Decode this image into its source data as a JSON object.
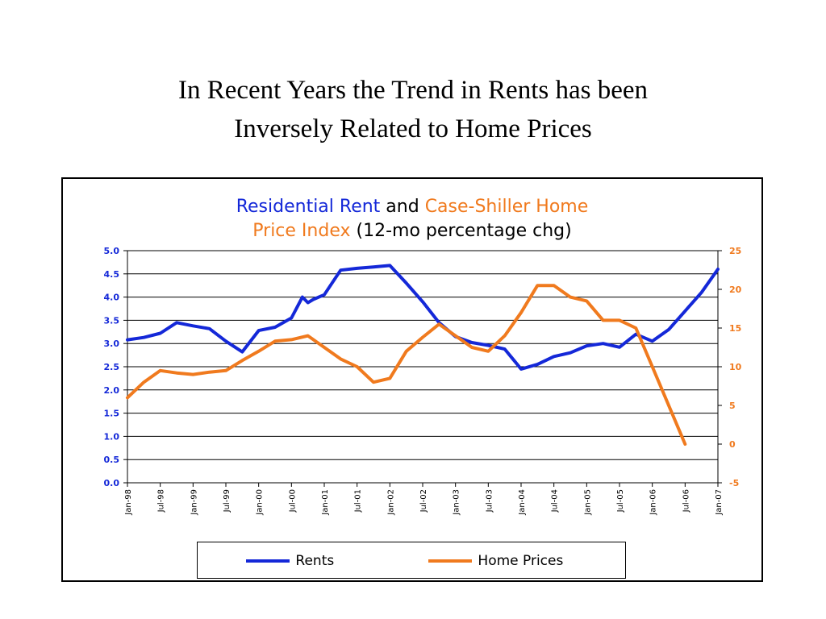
{
  "slide": {
    "title_line1": "In Recent Years the Trend in Rents has been",
    "title_line2": "Inversely Related to Home Prices"
  },
  "chart_header": {
    "part1": "Residential Rent",
    "part2": " and ",
    "part3": "Case-Shiller Home",
    "part4": "Price Index",
    "part5": " (12-mo percentage chg)"
  },
  "colors": {
    "rents": "#1428d8",
    "home_prices": "#f07a1e",
    "left_axis": "#1428d8",
    "right_axis": "#f07a1e"
  },
  "chart_data": {
    "type": "line",
    "title": "Residential Rent and Case-Shiller Home Price Index (12-mo percentage chg)",
    "grid": true,
    "legend_position": "bottom",
    "x_tick_labels": [
      "Jan-98",
      "Jul-98",
      "Jan-99",
      "Jul-99",
      "Jan-00",
      "Jul-00",
      "Jan-01",
      "Jul-01",
      "Jan-02",
      "Jul-02",
      "Jan-03",
      "Jul-03",
      "Jan-04",
      "Jul-04",
      "Jan-05",
      "Jul-05",
      "Jan-06",
      "Jul-06",
      "Jan-07"
    ],
    "y_left": {
      "range": [
        0,
        5
      ],
      "ticks": [
        "0.0",
        "0.5",
        "1.0",
        "1.5",
        "2.0",
        "2.5",
        "3.0",
        "3.5",
        "4.0",
        "4.5",
        "5.0"
      ]
    },
    "y_right": {
      "range": [
        -5,
        25
      ],
      "ticks": [
        "-5",
        "0",
        "5",
        "10",
        "15",
        "20",
        "25"
      ]
    },
    "series": [
      {
        "name": "Rents",
        "axis": "left",
        "x": [
          "Jan-98",
          "Apr-98",
          "Jul-98",
          "Oct-98",
          "Jan-99",
          "Apr-99",
          "Jul-99",
          "Oct-99",
          "Jan-00",
          "Apr-00",
          "Jul-00",
          "Sep-00",
          "Oct-00",
          "Nov-00",
          "Jan-01",
          "Apr-01",
          "Jul-01",
          "Oct-01",
          "Jan-02",
          "Apr-02",
          "Jul-02",
          "Oct-02",
          "Jan-03",
          "Apr-03",
          "Jul-03",
          "Oct-03",
          "Jan-04",
          "Apr-04",
          "Jul-04",
          "Oct-04",
          "Jan-05",
          "Apr-05",
          "Jul-05",
          "Oct-05",
          "Jan-06",
          "Apr-06",
          "Jul-06",
          "Oct-06",
          "Jan-07"
        ],
        "values": [
          3.08,
          3.13,
          3.22,
          3.45,
          3.38,
          3.32,
          3.05,
          2.82,
          3.28,
          3.35,
          3.55,
          4.0,
          3.88,
          3.95,
          4.05,
          4.58,
          4.62,
          4.65,
          4.68,
          4.3,
          3.9,
          3.45,
          3.15,
          3.02,
          2.96,
          2.88,
          2.45,
          2.55,
          2.72,
          2.8,
          2.95,
          3.0,
          2.92,
          3.2,
          3.05,
          3.3,
          3.7,
          4.1,
          4.6
        ]
      },
      {
        "name": "Home Prices",
        "axis": "right",
        "x": [
          "Jan-98",
          "Apr-98",
          "Jul-98",
          "Oct-98",
          "Jan-99",
          "Apr-99",
          "Jul-99",
          "Oct-99",
          "Jan-00",
          "Apr-00",
          "Jul-00",
          "Oct-00",
          "Jan-01",
          "Apr-01",
          "Jul-01",
          "Oct-01",
          "Jan-02",
          "Apr-02",
          "Jul-02",
          "Oct-02",
          "Jan-03",
          "Apr-03",
          "Jul-03",
          "Oct-03",
          "Jan-04",
          "Apr-04",
          "Jul-04",
          "Oct-04",
          "Jan-05",
          "Apr-05",
          "Jul-05",
          "Oct-05",
          "Jan-06",
          "Apr-06",
          "Jul-06",
          "Oct-06",
          "Jan-07"
        ],
        "values": [
          6.0,
          8.0,
          9.5,
          9.2,
          9.0,
          9.3,
          9.5,
          10.8,
          12.0,
          13.3,
          13.5,
          14.0,
          12.5,
          11.0,
          10.0,
          8.0,
          8.5,
          12.0,
          13.8,
          15.5,
          14.0,
          12.5,
          12.0,
          14.0,
          17.0,
          20.5,
          20.5,
          19.0,
          18.5,
          16.0,
          16.0,
          15.0,
          10.0,
          5.0,
          0.0,
          null,
          null
        ]
      }
    ]
  }
}
